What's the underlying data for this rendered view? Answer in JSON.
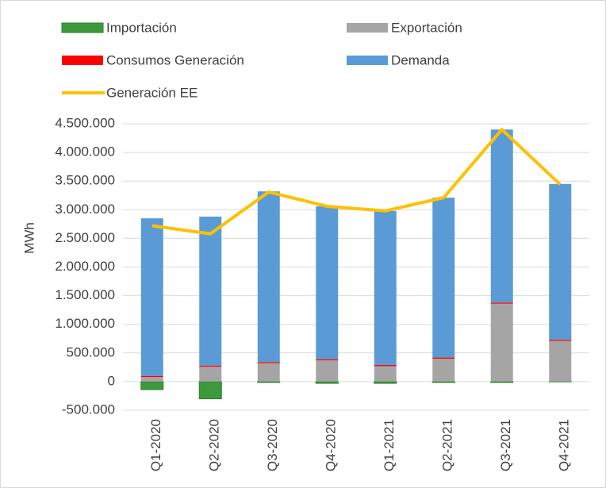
{
  "chart_data": {
    "type": "stacked_bar_line",
    "ylabel": "MWh",
    "categories": [
      "Q1-2020",
      "Q2-2020",
      "Q3-2020",
      "Q4-2020",
      "Q1-2021",
      "Q2-2021",
      "Q3-2021",
      "Q4-2021"
    ],
    "series": [
      {
        "name": "Importación",
        "color": "#3c9a3c",
        "type": "bar",
        "values": [
          -140000,
          -300000,
          -15000,
          -30000,
          -30000,
          -15000,
          -15000,
          -5000
        ]
      },
      {
        "name": "Exportación",
        "color": "#a5a5a5",
        "type": "bar",
        "values": [
          80000,
          260000,
          320000,
          370000,
          270000,
          400000,
          1360000,
          710000
        ]
      },
      {
        "name": "Consumos Generación",
        "color": "#ff0000",
        "type": "bar",
        "values": [
          20000,
          20000,
          20000,
          20000,
          20000,
          20000,
          20000,
          20000
        ]
      },
      {
        "name": "Demanda",
        "color": "#5b9bd5",
        "type": "bar",
        "values": [
          2750000,
          2600000,
          2980000,
          2670000,
          2690000,
          2790000,
          3020000,
          2720000
        ]
      },
      {
        "name": "Generación EE",
        "color": "#ffc000",
        "type": "line",
        "values": [
          2720000,
          2580000,
          3310000,
          3060000,
          2980000,
          3210000,
          4400000,
          3440000
        ]
      }
    ],
    "ylim": [
      -500000,
      4500000
    ],
    "yticks": [
      {
        "value": -500000,
        "label": "-500.000"
      },
      0,
      {
        "value": 500000,
        "label": "500.000"
      },
      {
        "value": 1000000,
        "label": "1.000.000"
      },
      {
        "value": 1500000,
        "label": "1.500.000"
      },
      {
        "value": 2000000,
        "label": "2.000.000"
      },
      {
        "value": 2500000,
        "label": "2.500.000"
      },
      {
        "value": 3000000,
        "label": "3.000.000"
      },
      {
        "value": 3500000,
        "label": "3.500.000"
      },
      {
        "value": 4000000,
        "label": "4.000.000"
      },
      {
        "value": 4500000,
        "label": "4.500.000"
      }
    ],
    "grid": true
  }
}
